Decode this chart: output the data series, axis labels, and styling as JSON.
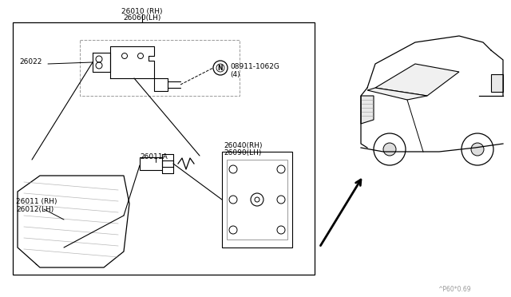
{
  "bg_color": "#ffffff",
  "line_color": "#000000",
  "gray_color": "#999999",
  "font_size": 6.5,
  "title_line1": "26010 (RH)",
  "title_line2": "26060(LH)",
  "label_26022": "26022",
  "label_26011": "26011 (RH)",
  "label_26012": "26012(LH)",
  "label_26011A": "26011A",
  "label_26040": "26040(RH)",
  "label_26090": "26090(LH)",
  "label_nut": "08911-1062G",
  "label_nut2": "(4)",
  "watermark": "^P60*0.69"
}
